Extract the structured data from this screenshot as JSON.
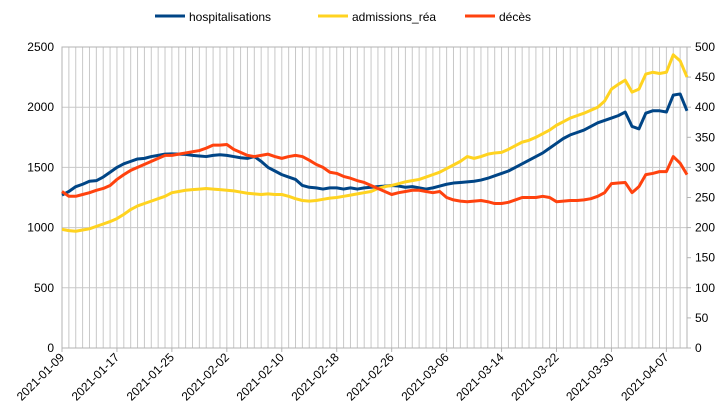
{
  "chart_data": {
    "type": "line",
    "categories": [
      "2021-01-09",
      null,
      null,
      null,
      null,
      null,
      null,
      null,
      "2021-01-17",
      null,
      null,
      null,
      null,
      null,
      null,
      null,
      "2021-01-25",
      null,
      null,
      null,
      null,
      null,
      null,
      null,
      "2021-02-02",
      null,
      null,
      null,
      null,
      null,
      null,
      null,
      "2021-02-10",
      null,
      null,
      null,
      null,
      null,
      null,
      null,
      "2021-02-18",
      null,
      null,
      null,
      null,
      null,
      null,
      null,
      "2021-02-26",
      null,
      null,
      null,
      null,
      null,
      null,
      null,
      "2021-03-06",
      null,
      null,
      null,
      null,
      null,
      null,
      null,
      "2021-03-14",
      null,
      null,
      null,
      null,
      null,
      null,
      null,
      "2021-03-22",
      null,
      null,
      null,
      null,
      null,
      null,
      null,
      "2021-03-30",
      null,
      null,
      null,
      null,
      null,
      null,
      null,
      "2021-04-07",
      null,
      null,
      null
    ],
    "series": [
      {
        "name": "hospitalisations",
        "color": "#004586",
        "axis": "y",
        "values": [
          1270,
          1300,
          1340,
          1360,
          1385,
          1390,
          1420,
          1460,
          1500,
          1530,
          1550,
          1570,
          1575,
          1590,
          1600,
          1610,
          1612,
          1610,
          1608,
          1600,
          1595,
          1590,
          1600,
          1605,
          1600,
          1590,
          1580,
          1575,
          1590,
          1550,
          1500,
          1470,
          1440,
          1420,
          1400,
          1350,
          1335,
          1330,
          1320,
          1330,
          1330,
          1320,
          1330,
          1320,
          1330,
          1335,
          1340,
          1345,
          1350,
          1345,
          1335,
          1340,
          1330,
          1320,
          1330,
          1345,
          1360,
          1370,
          1375,
          1380,
          1385,
          1395,
          1410,
          1430,
          1450,
          1470,
          1500,
          1530,
          1560,
          1590,
          1620,
          1660,
          1700,
          1740,
          1770,
          1790,
          1810,
          1840,
          1870,
          1890,
          1910,
          1930,
          1960,
          1840,
          1820,
          1950,
          1970,
          1970,
          1960,
          2100,
          2110,
          1970
        ]
      },
      {
        "name": "admissions_réa",
        "color": "#ffd320",
        "axis": "y2",
        "values": [
          197,
          195,
          194,
          196,
          198,
          202,
          206,
          210,
          215,
          222,
          230,
          236,
          240,
          244,
          248,
          252,
          258,
          260,
          262,
          263,
          264,
          265,
          264,
          263,
          262,
          261,
          259,
          257,
          256,
          255,
          256,
          255,
          255,
          252,
          248,
          245,
          244,
          245,
          247,
          249,
          250,
          252,
          254,
          256,
          258,
          260,
          265,
          268,
          270,
          273,
          276,
          278,
          280,
          284,
          288,
          292,
          298,
          304,
          310,
          318,
          315,
          318,
          322,
          324,
          325,
          330,
          336,
          342,
          345,
          350,
          356,
          362,
          370,
          376,
          382,
          386,
          390,
          395,
          400,
          410,
          430,
          438,
          445,
          425,
          430,
          455,
          458,
          456,
          458,
          487,
          477,
          450
        ]
      },
      {
        "name": "décès",
        "color": "#ff420e",
        "axis": "y2",
        "values": [
          260,
          252,
          252,
          255,
          258,
          262,
          265,
          270,
          280,
          288,
          295,
          300,
          305,
          310,
          315,
          320,
          320,
          322,
          324,
          326,
          328,
          332,
          337,
          337,
          338,
          330,
          325,
          320,
          318,
          320,
          322,
          318,
          315,
          318,
          320,
          318,
          312,
          305,
          300,
          292,
          290,
          285,
          282,
          278,
          275,
          270,
          265,
          260,
          255,
          258,
          260,
          262,
          262,
          260,
          258,
          260,
          250,
          246,
          244,
          243,
          244,
          245,
          243,
          240,
          240,
          242,
          246,
          250,
          250,
          250,
          252,
          250,
          243,
          244,
          245,
          245,
          246,
          248,
          252,
          258,
          273,
          274,
          275,
          258,
          268,
          288,
          290,
          293,
          293,
          318,
          307,
          288
        ]
      }
    ],
    "ylim": [
      0,
      2500
    ],
    "yticks": [
      0,
      500,
      1000,
      1500,
      2000,
      2500
    ],
    "y2lim": [
      0,
      500
    ],
    "y2ticks": [
      0,
      50,
      100,
      150,
      200,
      250,
      300,
      350,
      400,
      450,
      500
    ],
    "grid": true,
    "legend": "top"
  }
}
